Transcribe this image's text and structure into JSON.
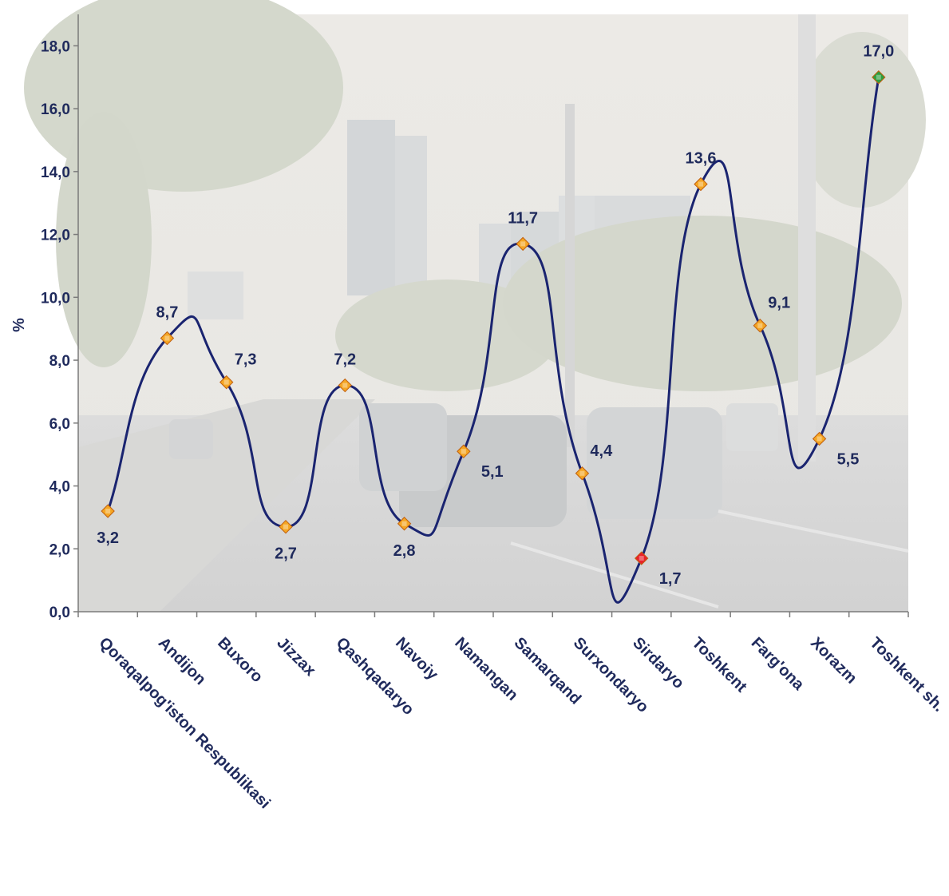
{
  "chart_data": {
    "type": "line",
    "ylabel": "%",
    "ylim": [
      0,
      19
    ],
    "yticks": [
      "0,0",
      "2,0",
      "4,0",
      "6,0",
      "8,0",
      "10,0",
      "12,0",
      "14,0",
      "16,0",
      "18,0"
    ],
    "ytick_values": [
      0,
      2,
      4,
      6,
      8,
      10,
      12,
      14,
      16,
      18
    ],
    "categories": [
      "Qoraqalpog'iston Respublikasi",
      "Andijon",
      "Buxoro",
      "Jizzax",
      "Qashqadaryo",
      "Navoiy",
      "Namangan",
      "Samarqand",
      "Surxondaryo",
      "Sirdaryo",
      "Toshkent",
      "Farg'ona",
      "Xorazm",
      "Toshkent sh."
    ],
    "values": [
      3.2,
      8.7,
      7.3,
      2.7,
      7.2,
      2.8,
      5.1,
      11.7,
      4.4,
      1.7,
      13.6,
      9.1,
      5.5,
      17.0
    ],
    "value_labels": [
      "3,2",
      "8,7",
      "7,3",
      "2,7",
      "7,2",
      "2,8",
      "5,1",
      "11,7",
      "4,4",
      "1,7",
      "13,6",
      "9,1",
      "5,5",
      "17,0"
    ],
    "label_position": [
      "below",
      "above",
      "above-right",
      "below",
      "above",
      "below",
      "below-right",
      "above",
      "above-right",
      "below-right",
      "above",
      "above-right",
      "below-right",
      "above"
    ],
    "marker_colors": [
      "#f5a623",
      "#f5a623",
      "#f5a623",
      "#f5a623",
      "#f5a623",
      "#f5a623",
      "#f5a623",
      "#f5a623",
      "#f5a623",
      "#e8202a",
      "#f5a623",
      "#f5a623",
      "#f5a623",
      "#2e9e3e"
    ],
    "line_color": "#1a2470",
    "text_color": "#1f2a5c",
    "background": "faded city street photo"
  }
}
